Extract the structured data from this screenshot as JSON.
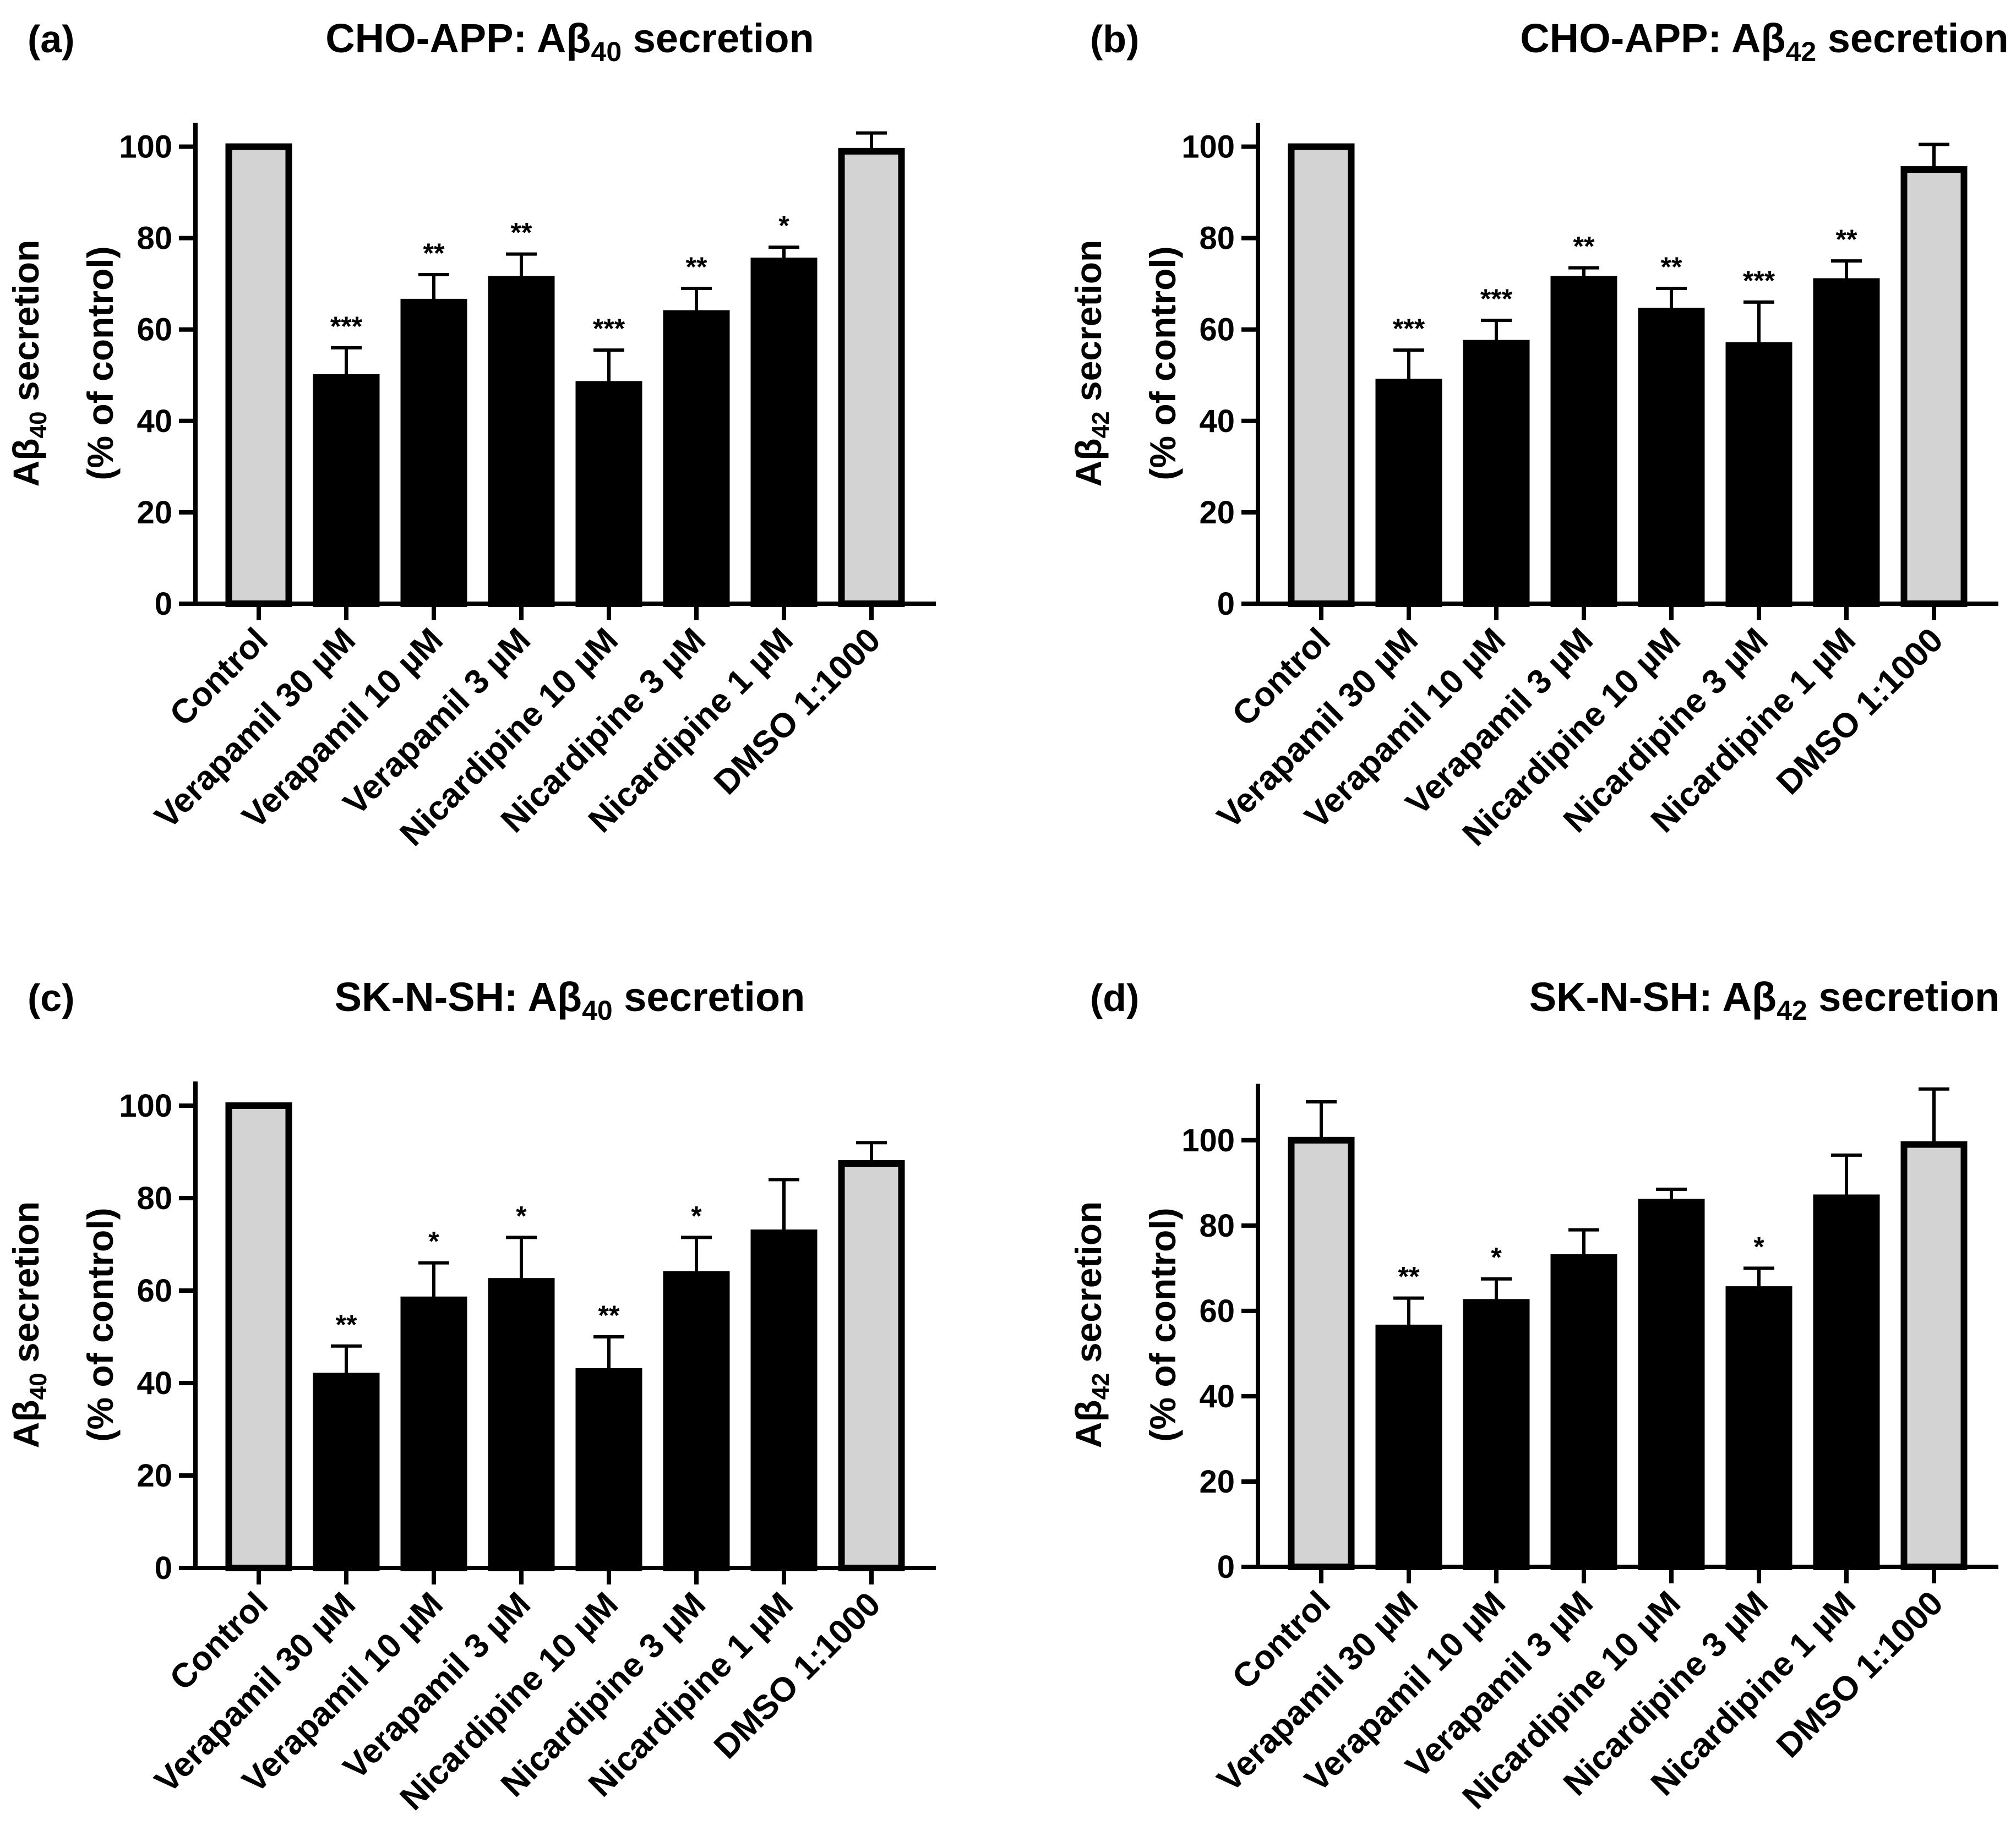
{
  "categories": [
    "Control",
    "Verapamil 30 µM",
    "Verapamil 10 µM",
    "Verapamil 3 µM",
    "Nicardipine 10 µM",
    "Nicardipine 3 µM",
    "Nicardipine 1 µM",
    "DMSO 1:1000"
  ],
  "colors": {
    "control_fill": "#d3d3d3",
    "treatment_fill": "#000000",
    "stroke": "#000000"
  },
  "y_label_line2": "(% of control)",
  "chart_data": [
    {
      "type": "bar",
      "panel_label": "(a)",
      "title_prefix": "CHO-APP: Aβ",
      "title_sub": "40",
      "title_suffix": " secretion",
      "ylabel_prefix": "Aβ",
      "ylabel_sub": "40",
      "ylabel_suffix": " secretion",
      "ylabel_line2": "(% of control)",
      "ylim": [
        0,
        105
      ],
      "yticks": [
        0,
        20,
        40,
        60,
        80,
        100
      ],
      "values": [
        100,
        49.5,
        66,
        71,
        48,
        63.5,
        75,
        99
      ],
      "errors": [
        0,
        6.5,
        6,
        5.5,
        7.5,
        5.5,
        3,
        4
      ],
      "significance": [
        "",
        "***",
        "**",
        "**",
        "***",
        "**",
        "*",
        ""
      ],
      "fills": [
        "control",
        "treatment",
        "treatment",
        "treatment",
        "treatment",
        "treatment",
        "treatment",
        "control"
      ]
    },
    {
      "type": "bar",
      "panel_label": "(b)",
      "title_prefix": "CHO-APP: Aβ",
      "title_sub": "42",
      "title_suffix": " secretion",
      "ylabel_prefix": "Aβ",
      "ylabel_sub": "42",
      "ylabel_suffix": " secretion",
      "ylabel_line2": "(% of control)",
      "ylim": [
        0,
        105
      ],
      "yticks": [
        0,
        20,
        40,
        60,
        80,
        100
      ],
      "values": [
        100,
        48.5,
        57,
        71,
        64,
        56.5,
        70.5,
        95
      ],
      "errors": [
        0,
        7,
        5,
        2.5,
        5,
        9.5,
        4.5,
        5.5
      ],
      "significance": [
        "",
        "***",
        "***",
        "**",
        "**",
        "***",
        "**",
        ""
      ],
      "fills": [
        "control",
        "treatment",
        "treatment",
        "treatment",
        "treatment",
        "treatment",
        "treatment",
        "control"
      ]
    },
    {
      "type": "bar",
      "panel_label": "(c)",
      "title_prefix": "SK-N-SH: Aβ",
      "title_sub": "40",
      "title_suffix": " secretion",
      "ylabel_prefix": "Aβ",
      "ylabel_sub": "40",
      "ylabel_suffix": " secretion",
      "ylabel_line2": "(% of control)",
      "ylim": [
        0,
        105
      ],
      "yticks": [
        0,
        20,
        40,
        60,
        80,
        100
      ],
      "values": [
        100,
        41.5,
        58,
        62,
        42.5,
        63.5,
        72.5,
        87.5
      ],
      "errors": [
        0,
        6.5,
        8,
        9.5,
        7.5,
        8,
        11.5,
        4.5
      ],
      "significance": [
        "",
        "**",
        "*",
        "*",
        "**",
        "*",
        "",
        ""
      ],
      "fills": [
        "control",
        "treatment",
        "treatment",
        "treatment",
        "treatment",
        "treatment",
        "treatment",
        "control"
      ]
    },
    {
      "type": "bar",
      "panel_label": "(d)",
      "title_prefix": "SK-N-SH: Aβ",
      "title_sub": "42",
      "title_suffix": " secretion",
      "ylabel_prefix": "Aβ",
      "ylabel_sub": "42",
      "ylabel_suffix": " secretion",
      "ylabel_line2": "(% of control)",
      "ylim": [
        0,
        113
      ],
      "yticks": [
        0,
        20,
        40,
        60,
        80,
        100
      ],
      "values": [
        100,
        56,
        62,
        72.5,
        85.5,
        65,
        86.5,
        99
      ],
      "errors": [
        9,
        7,
        5.5,
        6.5,
        3,
        5,
        10,
        13
      ],
      "significance": [
        "",
        "**",
        "*",
        "",
        "",
        "*",
        "",
        ""
      ],
      "fills": [
        "control",
        "treatment",
        "treatment",
        "treatment",
        "treatment",
        "treatment",
        "treatment",
        "control"
      ]
    }
  ]
}
